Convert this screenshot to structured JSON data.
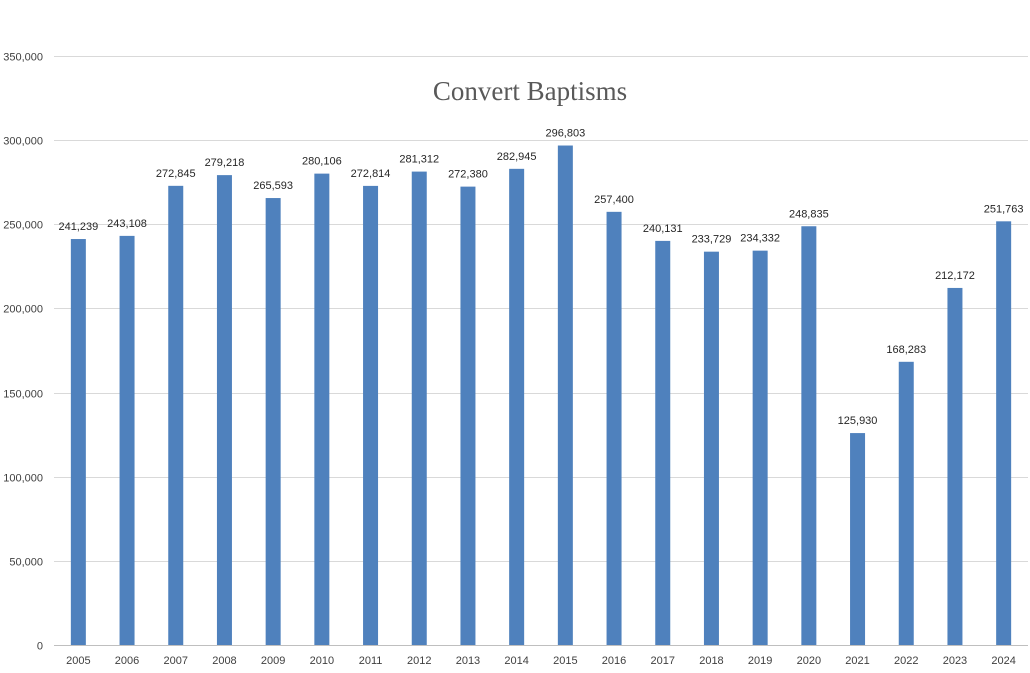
{
  "chart_data": {
    "type": "bar",
    "title": "Convert Baptisms",
    "xlabel": "",
    "ylabel": "",
    "categories": [
      "2005",
      "2006",
      "2007",
      "2008",
      "2009",
      "2010",
      "2011",
      "2012",
      "2013",
      "2014",
      "2015",
      "2016",
      "2017",
      "2018",
      "2019",
      "2020",
      "2021",
      "2022",
      "2023",
      "2024"
    ],
    "values": [
      241239,
      243108,
      272845,
      279218,
      265593,
      280106,
      272814,
      281312,
      272380,
      282945,
      296803,
      257400,
      240131,
      233729,
      234332,
      248835,
      125930,
      168283,
      212172,
      251763
    ],
    "data_labels": [
      "241,239",
      "243,108",
      "272,845",
      "279,218",
      "265,593",
      "280,106",
      "272,814",
      "281,312",
      "272,380",
      "282,945",
      "296,803",
      "257,400",
      "240,131",
      "233,729",
      "234,332",
      "248,835",
      "125,930",
      "168,283",
      "212,172",
      "251,763"
    ],
    "ylim": [
      0,
      350000
    ],
    "yticks": [
      0,
      50000,
      100000,
      150000,
      200000,
      250000,
      300000,
      350000
    ],
    "ytick_labels": [
      "0",
      "50,000",
      "100,000",
      "150,000",
      "200,000",
      "250,000",
      "300,000",
      "350,000"
    ],
    "grid": true,
    "legend": "none",
    "colors": {
      "bar": "#4f81bd",
      "gridline": "#d9d9d9",
      "title": "#595959"
    }
  }
}
